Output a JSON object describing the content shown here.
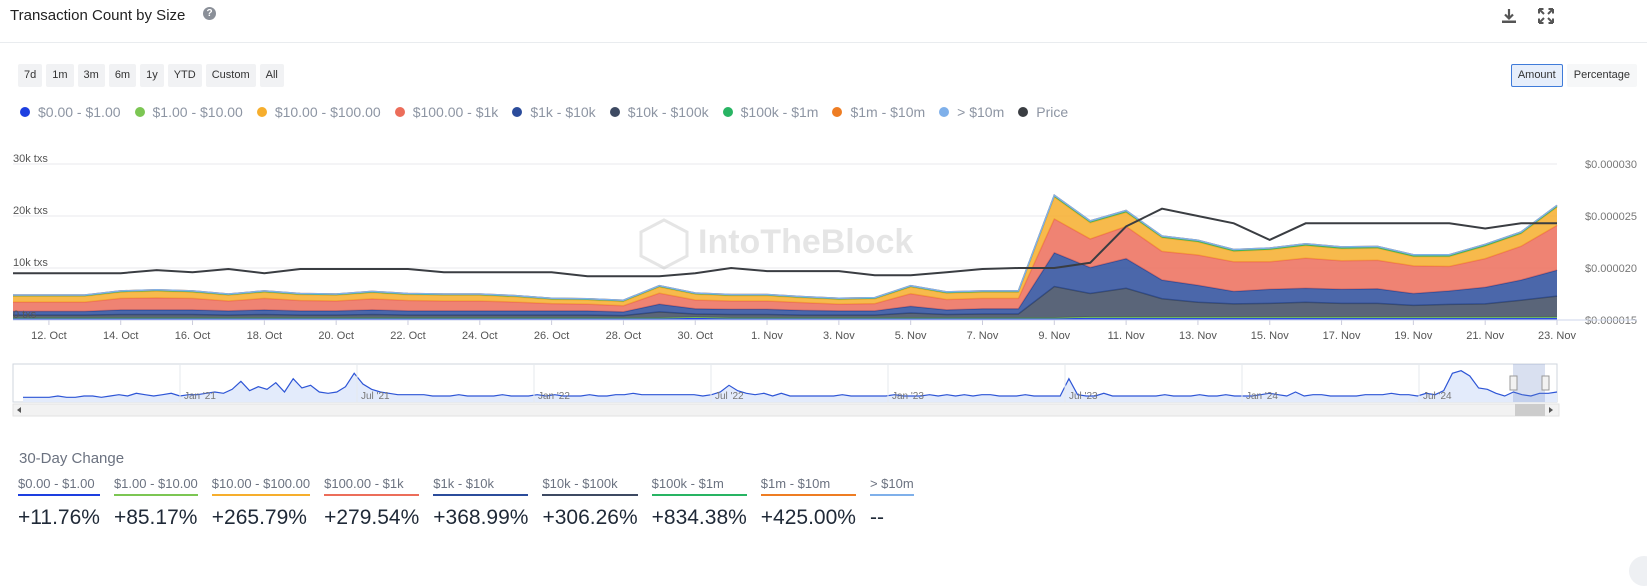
{
  "header": {
    "title": "Transaction Count by Size",
    "help_icon": "question-circle-icon",
    "download_icon": "download-icon",
    "fullscreen_icon": "expand-icon"
  },
  "range_buttons": [
    "7d",
    "1m",
    "3m",
    "6m",
    "1y",
    "YTD",
    "Custom",
    "All"
  ],
  "mode_buttons": [
    {
      "label": "Amount",
      "active": true
    },
    {
      "label": "Percentage",
      "active": false
    }
  ],
  "legend": [
    {
      "label": "$0.00 - $1.00",
      "color": "#1d3fe0"
    },
    {
      "label": "$1.00 - $10.00",
      "color": "#7cc653"
    },
    {
      "label": "$10.00 - $100.00",
      "color": "#f6ae2d"
    },
    {
      "label": "$100.00 - $1k",
      "color": "#ec6d5a"
    },
    {
      "label": "$1k - $10k",
      "color": "#2b4c9b"
    },
    {
      "label": "$10k - $100k",
      "color": "#3d4a62"
    },
    {
      "label": "$100k - $1m",
      "color": "#28b463"
    },
    {
      "label": "$1m - $10m",
      "color": "#ee7d23"
    },
    {
      "label": "> $10m",
      "color": "#7fb0ea"
    },
    {
      "label": "Price",
      "color": "#3a3d42"
    }
  ],
  "chart_data": {
    "type": "area",
    "stacked": true,
    "watermark": "IntoTheBlock",
    "x": [
      "11 Oct",
      "12 Oct",
      "13 Oct",
      "14 Oct",
      "15 Oct",
      "16 Oct",
      "17 Oct",
      "18 Oct",
      "19 Oct",
      "20 Oct",
      "21 Oct",
      "22 Oct",
      "23 Oct",
      "24 Oct",
      "25 Oct",
      "26 Oct",
      "27 Oct",
      "28 Oct",
      "29 Oct",
      "30 Oct",
      "31 Oct",
      "1 Nov",
      "2 Nov",
      "3 Nov",
      "4 Nov",
      "5 Nov",
      "6 Nov",
      "7 Nov",
      "8 Nov",
      "9 Nov",
      "10 Nov",
      "11 Nov",
      "12 Nov",
      "13 Nov",
      "14 Nov",
      "15 Nov",
      "16 Nov",
      "17 Nov",
      "18 Nov",
      "19 Nov",
      "20 Nov",
      "21 Nov",
      "22 Nov",
      "23 Nov"
    ],
    "x_tick_labels": [
      "12. Oct",
      "14. Oct",
      "16. Oct",
      "18. Oct",
      "20. Oct",
      "22. Oct",
      "24. Oct",
      "26. Oct",
      "28. Oct",
      "30. Oct",
      "1. Nov",
      "3. Nov",
      "5. Nov",
      "7. Nov",
      "9. Nov",
      "11. Nov",
      "13. Nov",
      "15. Nov",
      "17. Nov",
      "19. Nov",
      "21. Nov",
      "23. Nov"
    ],
    "y_left_ticks": [
      "0 txs",
      "10k txs",
      "20k txs",
      "30k txs"
    ],
    "y_left_range": [
      0,
      30000
    ],
    "y_right_ticks": [
      "$0.000015",
      "$0.000020",
      "$0.000025",
      "$0.000030"
    ],
    "y_right_range": [
      1.5e-05,
      3e-05
    ],
    "series": [
      {
        "name": "$0.00 - $1.00",
        "color": "#1d3fe0",
        "values": [
          300,
          300,
          300,
          300,
          300,
          300,
          300,
          300,
          300,
          300,
          300,
          300,
          300,
          300,
          300,
          300,
          300,
          300,
          300,
          400,
          300,
          300,
          300,
          300,
          300,
          300,
          300,
          300,
          300,
          300,
          400,
          400,
          400,
          400,
          400,
          400,
          400,
          400,
          400,
          400,
          400,
          400,
          400,
          400
        ]
      },
      {
        "name": "$1.00 - $10.00",
        "color": "#7cc653",
        "values": [
          150,
          150,
          150,
          150,
          150,
          150,
          150,
          150,
          150,
          150,
          150,
          150,
          150,
          150,
          150,
          150,
          150,
          150,
          150,
          150,
          150,
          150,
          150,
          150,
          150,
          150,
          150,
          150,
          150,
          150,
          200,
          200,
          200,
          200,
          200,
          200,
          200,
          200,
          200,
          200,
          200,
          200,
          200,
          200
        ]
      },
      {
        "name": "$10k - $100k",
        "color": "#3d4a62",
        "values": [
          500,
          500,
          500,
          600,
          600,
          600,
          500,
          600,
          500,
          500,
          600,
          500,
          500,
          500,
          500,
          500,
          500,
          400,
          1100,
          600,
          600,
          600,
          500,
          500,
          500,
          900,
          600,
          700,
          700,
          6000,
          4500,
          5500,
          3500,
          2800,
          2500,
          2600,
          2800,
          2600,
          2600,
          2200,
          2400,
          2500,
          3200,
          4000
        ]
      },
      {
        "name": "$1k - $10k",
        "color": "#2b4c9b",
        "values": [
          700,
          700,
          700,
          900,
          900,
          900,
          800,
          900,
          800,
          800,
          900,
          800,
          800,
          800,
          800,
          800,
          800,
          700,
          1500,
          1000,
          1000,
          1000,
          900,
          800,
          800,
          1300,
          900,
          1000,
          1000,
          6500,
          5000,
          5700,
          3600,
          3300,
          2400,
          2700,
          2700,
          2700,
          2800,
          2300,
          2600,
          3200,
          3900,
          5000
        ]
      },
      {
        "name": "$100.00 - $1k",
        "color": "#ec6d5a",
        "values": [
          1800,
          1800,
          1800,
          2200,
          2300,
          2200,
          1900,
          2200,
          2000,
          1900,
          2100,
          2000,
          1900,
          1900,
          1700,
          1400,
          1300,
          1200,
          2100,
          1700,
          1600,
          1600,
          1500,
          1300,
          1400,
          2400,
          2000,
          2000,
          2000,
          6500,
          5500,
          6200,
          5500,
          5800,
          5700,
          5300,
          5800,
          5500,
          5500,
          5300,
          4700,
          5500,
          6500,
          8600
        ]
      },
      {
        "name": "$10.00 - $100.00",
        "color": "#f6ae2d",
        "values": [
          1100,
          1100,
          1100,
          1200,
          1300,
          1200,
          1100,
          1200,
          1100,
          1100,
          1200,
          1100,
          1100,
          1100,
          1000,
          800,
          800,
          800,
          1200,
          1100,
          1000,
          1000,
          900,
          900,
          900,
          1300,
          1200,
          1200,
          1200,
          4200,
          3100,
          2700,
          2600,
          2500,
          2000,
          2300,
          2400,
          2300,
          2300,
          1800,
          1900,
          2400,
          2400,
          3500
        ]
      },
      {
        "name": "$100k - $1m",
        "color": "#28b463",
        "values": [
          200,
          200,
          200,
          200,
          200,
          200,
          200,
          200,
          200,
          200,
          200,
          200,
          200,
          200,
          200,
          200,
          200,
          200,
          200,
          200,
          200,
          200,
          200,
          200,
          200,
          200,
          200,
          200,
          200,
          300,
          300,
          300,
          300,
          300,
          300,
          300,
          300,
          300,
          300,
          300,
          300,
          300,
          300,
          300
        ]
      },
      {
        "name": "$1m - $10m",
        "color": "#ee7d23",
        "values": [
          50,
          50,
          50,
          50,
          50,
          50,
          50,
          50,
          50,
          50,
          50,
          50,
          50,
          50,
          50,
          50,
          50,
          50,
          50,
          50,
          50,
          50,
          50,
          50,
          50,
          50,
          50,
          50,
          50,
          50,
          50,
          50,
          50,
          50,
          50,
          50,
          50,
          50,
          50,
          50,
          50,
          50,
          50,
          50
        ]
      },
      {
        "name": "> $10m",
        "color": "#7fb0ea",
        "values": [
          0,
          0,
          0,
          0,
          0,
          0,
          0,
          0,
          0,
          0,
          0,
          0,
          0,
          0,
          0,
          0,
          0,
          0,
          0,
          0,
          0,
          0,
          0,
          0,
          0,
          0,
          0,
          0,
          0,
          0,
          0,
          0,
          0,
          0,
          0,
          0,
          0,
          0,
          0,
          0,
          0,
          0,
          0,
          0
        ]
      }
    ],
    "price": {
      "name": "Price",
      "color": "#3a3d42",
      "values": [
        1.95e-05,
        1.95e-05,
        1.95e-05,
        1.95e-05,
        1.98e-05,
        1.96e-05,
        1.99e-05,
        1.95e-05,
        1.99e-05,
        1.99e-05,
        1.99e-05,
        1.99e-05,
        1.96e-05,
        1.96e-05,
        1.96e-05,
        1.96e-05,
        1.92e-05,
        1.92e-05,
        1.92e-05,
        1.95e-05,
        2e-05,
        1.97e-05,
        1.97e-05,
        1.97e-05,
        1.93e-05,
        1.93e-05,
        1.96e-05,
        1.99e-05,
        2e-05,
        2e-05,
        2.05e-05,
        2.4e-05,
        2.57e-05,
        2.5e-05,
        2.43e-05,
        2.27e-05,
        2.43e-05,
        2.43e-05,
        2.43e-05,
        2.43e-05,
        2.43e-05,
        2.38e-05,
        2.43e-05,
        2.43e-05
      ]
    }
  },
  "navigator": {
    "labels": [
      "Jan '21",
      "Jul '21",
      "Jan '22",
      "Jul '22",
      "Jan '23",
      "Jul '23",
      "Jan '24",
      "Jul '24"
    ],
    "values": [
      2,
      2,
      2,
      2,
      3,
      2,
      2,
      3,
      3,
      2,
      3,
      4,
      3,
      5,
      4,
      3,
      4,
      5,
      3,
      4,
      4,
      5,
      6,
      5,
      8,
      14,
      7,
      10,
      8,
      13,
      6,
      16,
      9,
      11,
      6,
      5,
      6,
      10,
      20,
      12,
      8,
      6,
      5,
      4,
      4,
      4,
      4,
      3,
      3,
      3,
      4,
      3,
      3,
      3,
      3,
      4,
      3,
      3,
      3,
      4,
      3,
      4,
      3,
      3,
      3,
      4,
      3,
      3,
      4,
      4,
      5,
      4,
      4,
      4,
      4,
      4,
      4,
      4,
      3,
      4,
      6,
      11,
      7,
      5,
      4,
      5,
      3,
      5,
      3,
      3,
      3,
      3,
      3,
      3,
      4,
      3,
      3,
      3,
      3,
      3,
      4,
      3,
      3,
      3,
      4,
      3,
      4,
      3,
      4,
      3,
      4,
      4,
      3,
      3,
      3,
      4,
      3,
      3,
      3,
      3,
      16,
      4,
      3,
      3,
      5,
      3,
      3,
      3,
      3,
      3,
      3,
      4,
      3,
      3,
      3,
      4,
      3,
      3,
      4,
      3,
      3,
      3,
      4,
      5,
      4,
      3,
      6,
      3,
      4,
      4,
      3,
      3,
      3,
      3,
      4,
      4,
      4,
      5,
      4,
      4,
      3,
      5,
      4,
      7,
      20,
      22,
      18,
      9,
      8,
      5,
      3,
      6,
      4,
      3,
      5,
      5,
      6
    ],
    "selection": {
      "from": "10 Oct",
      "to": "23 Nov"
    }
  },
  "changes": {
    "title": "30-Day Change",
    "items": [
      {
        "label": "$0.00 - $1.00",
        "value": "+11.76%",
        "color": "#1d3fe0"
      },
      {
        "label": "$1.00 - $10.00",
        "value": "+85.17%",
        "color": "#7cc653"
      },
      {
        "label": "$10.00 - $100.00",
        "value": "+265.79%",
        "color": "#f6ae2d"
      },
      {
        "label": "$100.00 - $1k",
        "value": "+279.54%",
        "color": "#ec6d5a"
      },
      {
        "label": "$1k - $10k",
        "value": "+368.99%",
        "color": "#2b4c9b"
      },
      {
        "label": "$10k - $100k",
        "value": "+306.26%",
        "color": "#3d4a62"
      },
      {
        "label": "$100k - $1m",
        "value": "+834.38%",
        "color": "#28b463"
      },
      {
        "label": "$1m - $10m",
        "value": "+425.00%",
        "color": "#ee7d23"
      },
      {
        "label": "> $10m",
        "value": "--",
        "color": "#7fb0ea"
      }
    ]
  }
}
